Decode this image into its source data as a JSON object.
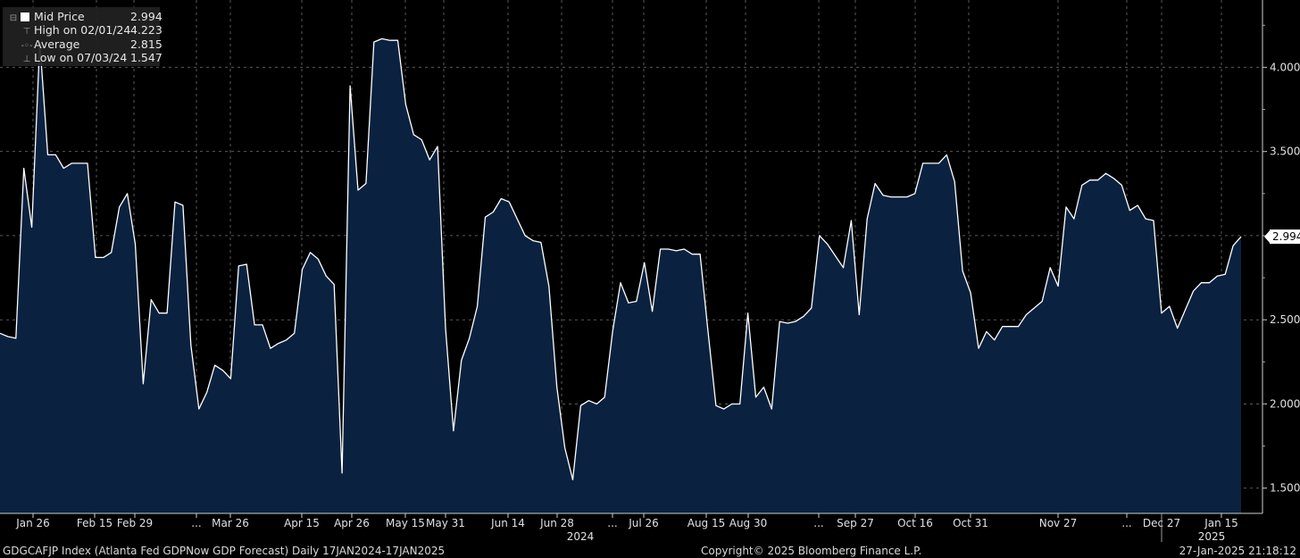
{
  "legend": {
    "series": {
      "label": "Mid Price",
      "value": "2.994"
    },
    "high": {
      "label": "High on 02/01/24",
      "value": "4.223"
    },
    "average": {
      "label": "Average",
      "value": "2.815"
    },
    "low": {
      "label": "Low on 07/03/24",
      "value": "1.547"
    }
  },
  "footer": {
    "left": "GDGCAFJP Index (Atlanta Fed GDPNow GDP Forecast)  Daily 17JAN2024-17JAN2025",
    "center": "Copyright© 2025 Bloomberg Finance L.P.",
    "right": "27-Jan-2025 21:18:12"
  },
  "colors": {
    "background": "#000000",
    "area_fill": "#0a2240",
    "line": "#ffffff",
    "grid": "#5a5a5a",
    "text": "#e0e0e0"
  },
  "chart_data": {
    "type": "area",
    "x_tick_labels": [
      "Jan 26",
      "Feb 15",
      "Feb 29",
      "...",
      "Mar 26",
      "Apr 15",
      "Apr 26",
      "May 15",
      "May 31",
      "Jun 14",
      "Jun 28",
      "...",
      "Jul 26",
      "Aug 15",
      "Aug 30",
      "...",
      "Sep 27",
      "Oct 16",
      "Oct 31",
      "Nov 27",
      "...",
      "Dec 27",
      "Jan 15"
    ],
    "year_labels": [
      "2024",
      "2025"
    ],
    "y_ticks": [
      "1.500",
      "2.000",
      "2.500",
      "3.000",
      "3.500",
      "4.000"
    ],
    "ylim": [
      1.35,
      4.4
    ],
    "grid": true,
    "last_value_label": "2.994",
    "values": [
      2.42,
      2.4,
      2.39,
      3.4,
      3.05,
      4.15,
      3.48,
      3.48,
      3.4,
      3.43,
      3.43,
      3.43,
      2.87,
      2.87,
      2.9,
      3.17,
      3.25,
      2.95,
      2.12,
      2.62,
      2.54,
      2.54,
      3.2,
      3.18,
      2.35,
      1.97,
      2.07,
      2.23,
      2.2,
      2.15,
      2.82,
      2.83,
      2.47,
      2.47,
      2.33,
      2.36,
      2.38,
      2.42,
      2.8,
      2.9,
      2.86,
      2.76,
      2.71,
      1.59,
      3.89,
      3.27,
      3.31,
      4.15,
      4.17,
      4.16,
      4.16,
      3.78,
      3.6,
      3.57,
      3.45,
      3.53,
      2.45,
      1.84,
      2.26,
      2.39,
      2.58,
      3.11,
      3.14,
      3.22,
      3.2,
      3.1,
      3.0,
      2.97,
      2.96,
      2.7,
      2.1,
      1.74,
      1.55,
      1.99,
      2.02,
      2.0,
      2.04,
      2.43,
      2.72,
      2.6,
      2.61,
      2.84,
      2.55,
      2.92,
      2.92,
      2.91,
      2.92,
      2.89,
      2.89,
      2.43,
      1.99,
      1.97,
      2.0,
      2.0,
      2.54,
      2.04,
      2.1,
      1.97,
      2.49,
      2.48,
      2.49,
      2.52,
      2.57,
      3.0,
      2.95,
      2.88,
      2.81,
      3.09,
      2.53,
      3.1,
      3.31,
      3.24,
      3.23,
      3.23,
      3.23,
      3.25,
      3.43,
      3.43,
      3.43,
      3.48,
      3.32,
      2.79,
      2.66,
      2.33,
      2.43,
      2.38,
      2.46,
      2.46,
      2.46,
      2.53,
      2.57,
      2.61,
      2.81,
      2.7,
      3.17,
      3.1,
      3.3,
      3.33,
      3.33,
      3.37,
      3.34,
      3.3,
      3.15,
      3.18,
      3.1,
      3.09,
      2.54,
      2.58,
      2.45,
      2.56,
      2.67,
      2.72,
      2.72,
      2.76,
      2.77,
      2.94,
      2.994
    ]
  }
}
